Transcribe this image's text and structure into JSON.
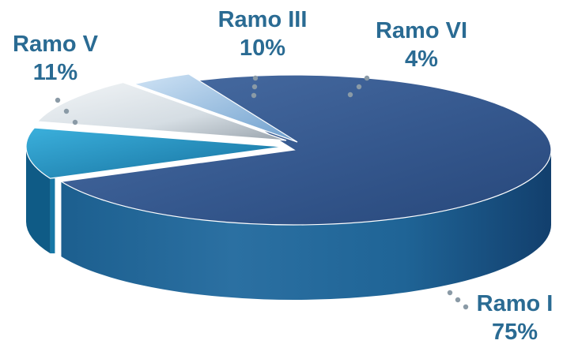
{
  "chart_data": {
    "type": "pie",
    "style": "3d-exploded",
    "title": "",
    "slices": [
      {
        "name": "Ramo I",
        "label": "Ramo I",
        "value": 75,
        "value_label": "75%",
        "color": "#355f95"
      },
      {
        "name": "Ramo V",
        "label": "Ramo V",
        "value": 11,
        "value_label": "11%",
        "color": "#1f86b5"
      },
      {
        "name": "Ramo III",
        "label": "Ramo III",
        "value": 10,
        "value_label": "10%",
        "color": "#dfe7ec"
      },
      {
        "name": "Ramo VI",
        "label": "Ramo VI",
        "value": 4,
        "value_label": "4%",
        "color": "#9cc3e6"
      }
    ],
    "label_color": "#2a6b93",
    "legend": "none"
  }
}
